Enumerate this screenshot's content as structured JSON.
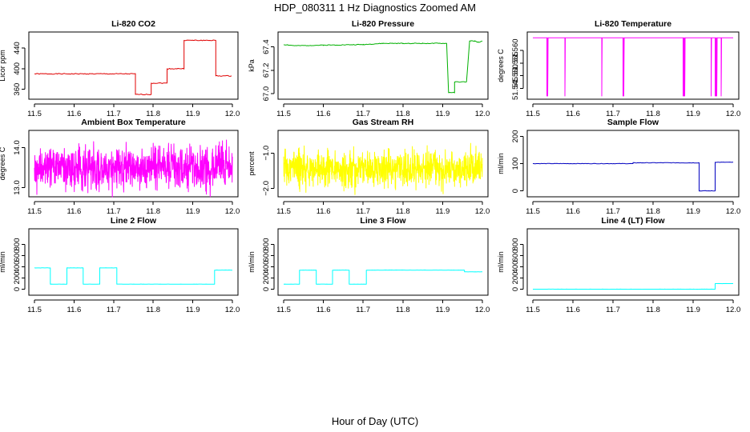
{
  "figure": {
    "title": "HDP_080311  1 Hz Diagnostics Zoomed AM",
    "xlabel": "Hour of Day (UTC)"
  },
  "chart_data": [
    {
      "type": "line",
      "title": "Li-820 CO2",
      "ylabel": "Licor ppm",
      "xlim": [
        11.5,
        12.0
      ],
      "ylim": [
        347,
        465
      ],
      "xticks": [
        11.5,
        11.6,
        11.7,
        11.8,
        11.9,
        12.0
      ],
      "yticks": [
        360,
        400,
        440
      ],
      "ytick_labels": [
        "360",
        "400",
        "440"
      ],
      "color": "#e00000",
      "series": [
        {
          "name": "Li-820 CO2",
          "noise": 0.8,
          "seed": 1,
          "points": [
            [
              11.5,
              390
            ],
            [
              11.755,
              390
            ],
            [
              11.755,
              350
            ],
            [
              11.795,
              350
            ],
            [
              11.795,
              372
            ],
            [
              11.835,
              372
            ],
            [
              11.835,
              400
            ],
            [
              11.878,
              400
            ],
            [
              11.878,
              455
            ],
            [
              11.958,
              455
            ],
            [
              11.958,
              386
            ],
            [
              11.998,
              386
            ]
          ]
        }
      ]
    },
    {
      "type": "line",
      "title": "Li-820 Pressure",
      "ylabel": "kPa",
      "xlim": [
        11.5,
        12.0
      ],
      "ylim": [
        66.98,
        67.5
      ],
      "xticks": [
        11.5,
        11.6,
        11.7,
        11.8,
        11.9,
        12.0
      ],
      "yticks": [
        67.0,
        67.2,
        67.4
      ],
      "ytick_labels": [
        "67.0",
        "67.2",
        "67.4"
      ],
      "color": "#00b000",
      "series": [
        {
          "name": "Li-820 Pressure",
          "noise": 0.003,
          "seed": 2,
          "points": [
            [
              11.5,
              67.42
            ],
            [
              11.53,
              67.41
            ],
            [
              11.6,
              67.415
            ],
            [
              11.7,
              67.42
            ],
            [
              11.75,
              67.43
            ],
            [
              11.8,
              67.43
            ],
            [
              11.85,
              67.43
            ],
            [
              11.91,
              67.43
            ],
            [
              11.915,
              67.01
            ],
            [
              11.93,
              67.01
            ],
            [
              11.93,
              67.1
            ],
            [
              11.96,
              67.1
            ],
            [
              11.968,
              67.45
            ],
            [
              11.98,
              67.45
            ],
            [
              11.99,
              67.44
            ],
            [
              12.0,
              67.45
            ]
          ]
        }
      ]
    },
    {
      "type": "line",
      "title": "Li-820 Temperature",
      "ylabel": "degrees C",
      "xlim": [
        11.5,
        12.0
      ],
      "ylim": [
        51.542,
        51.566
      ],
      "xticks": [
        11.5,
        11.6,
        11.7,
        11.8,
        11.9,
        12.0
      ],
      "yticks": [
        51.545,
        51.55,
        51.555,
        51.56
      ],
      "ytick_labels": [
        "51.545",
        "51.550",
        "51.555",
        "51.560"
      ],
      "color": "#ff00ff",
      "series": [
        {
          "name": "Li-820 Temperature",
          "noise": 0.0,
          "seed": 3,
          "points": [
            [
              11.5,
              51.565
            ],
            [
              11.535,
              51.565
            ],
            [
              11.535,
              51.542
            ],
            [
              11.536,
              51.565
            ],
            [
              11.537,
              51.542
            ],
            [
              11.538,
              51.565
            ],
            [
              11.58,
              51.565
            ],
            [
              11.58,
              51.542
            ],
            [
              11.581,
              51.565
            ],
            [
              11.672,
              51.565
            ],
            [
              11.672,
              51.542
            ],
            [
              11.673,
              51.565
            ],
            [
              11.725,
              51.565
            ],
            [
              11.725,
              51.542
            ],
            [
              11.726,
              51.565
            ],
            [
              11.727,
              51.542
            ],
            [
              11.728,
              51.565
            ],
            [
              11.875,
              51.565
            ],
            [
              11.875,
              51.542
            ],
            [
              11.876,
              51.565
            ],
            [
              11.877,
              51.542
            ],
            [
              11.878,
              51.565
            ],
            [
              11.879,
              51.542
            ],
            [
              11.88,
              51.565
            ],
            [
              11.945,
              51.565
            ],
            [
              11.945,
              51.542
            ],
            [
              11.946,
              51.565
            ],
            [
              11.955,
              51.565
            ],
            [
              11.955,
              51.542
            ],
            [
              11.956,
              51.565
            ],
            [
              11.957,
              51.542
            ],
            [
              11.958,
              51.565
            ],
            [
              11.959,
              51.542
            ],
            [
              11.96,
              51.565
            ],
            [
              11.97,
              51.565
            ],
            [
              11.97,
              51.542
            ],
            [
              11.971,
              51.565
            ],
            [
              12.0,
              51.565
            ]
          ]
        }
      ]
    },
    {
      "type": "line",
      "title": "Ambient Box Temperature",
      "ylabel": "degrees C",
      "xlim": [
        11.5,
        12.0
      ],
      "ylim": [
        12.85,
        14.35
      ],
      "xticks": [
        11.5,
        11.6,
        11.7,
        11.8,
        11.9,
        12.0
      ],
      "yticks": [
        13.0,
        14.0
      ],
      "ytick_labels": [
        "13.0",
        "14.0"
      ],
      "color": "#ff00ff",
      "series": [
        {
          "name": "Ambient Box Temperature",
          "noise": 0.5,
          "seed": 4,
          "dense": true,
          "points": [
            [
              11.5,
              13.5
            ],
            [
              12.0,
              13.5
            ]
          ]
        }
      ]
    },
    {
      "type": "line",
      "title": "Gas Stream RH",
      "ylabel": "percent",
      "xlim": [
        11.5,
        12.0
      ],
      "ylim": [
        -2.15,
        -0.45
      ],
      "xticks": [
        11.5,
        11.6,
        11.7,
        11.8,
        11.9,
        12.0
      ],
      "yticks": [
        -2.0,
        -1.0
      ],
      "ytick_labels": [
        "−2.0",
        "−1.0"
      ],
      "color": "#ffff00",
      "series": [
        {
          "name": "Gas Stream RH",
          "noise": 0.5,
          "seed": 5,
          "dense": true,
          "points": [
            [
              11.5,
              -1.45
            ],
            [
              12.0,
              -1.45
            ]
          ]
        }
      ]
    },
    {
      "type": "line",
      "title": "Sample Flow",
      "ylabel": "ml/min",
      "xlim": [
        11.5,
        12.0
      ],
      "ylim": [
        -10,
        210
      ],
      "xticks": [
        11.5,
        11.6,
        11.7,
        11.8,
        11.9,
        12.0
      ],
      "yticks": [
        0,
        100,
        200
      ],
      "ytick_labels": [
        "0",
        "100",
        "200"
      ],
      "color": "#0000c0",
      "series": [
        {
          "name": "Sample Flow",
          "noise": 0.8,
          "seed": 6,
          "points": [
            [
              11.5,
              100
            ],
            [
              11.75,
              100
            ],
            [
              11.75,
              103
            ],
            [
              11.915,
              103
            ],
            [
              11.915,
              0
            ],
            [
              11.955,
              0
            ],
            [
              11.955,
              105
            ],
            [
              12.0,
              105
            ]
          ]
        }
      ]
    },
    {
      "type": "line",
      "title": "Line 2 Flow",
      "ylabel": "ml/min",
      "xlim": [
        11.5,
        12.0
      ],
      "ylim": [
        -50,
        1020
      ],
      "xticks": [
        11.5,
        11.6,
        11.7,
        11.8,
        11.9,
        12.0
      ],
      "yticks": [
        0,
        200,
        400,
        600,
        800
      ],
      "ytick_labels": [
        "0",
        "200",
        "400",
        "600",
        "800"
      ],
      "color": "#00ffff",
      "series": [
        {
          "name": "Line 2 Flow",
          "noise": 2,
          "seed": 7,
          "points": [
            [
              11.5,
              380
            ],
            [
              11.54,
              380
            ],
            [
              11.54,
              90
            ],
            [
              11.582,
              90
            ],
            [
              11.582,
              380
            ],
            [
              11.623,
              380
            ],
            [
              11.623,
              90
            ],
            [
              11.665,
              90
            ],
            [
              11.665,
              380
            ],
            [
              11.708,
              380
            ],
            [
              11.708,
              90
            ],
            [
              11.955,
              90
            ],
            [
              11.955,
              340
            ],
            [
              12.0,
              340
            ]
          ]
        }
      ]
    },
    {
      "type": "line",
      "title": "Line 3 Flow",
      "ylabel": "ml/min",
      "xlim": [
        11.5,
        12.0
      ],
      "ylim": [
        -50,
        1020
      ],
      "xticks": [
        11.5,
        11.6,
        11.7,
        11.8,
        11.9,
        12.0
      ],
      "yticks": [
        0,
        200,
        400,
        600,
        800
      ],
      "ytick_labels": [
        "0",
        "200",
        "400",
        "600",
        "800"
      ],
      "color": "#00ffff",
      "series": [
        {
          "name": "Line 3 Flow",
          "noise": 2,
          "seed": 8,
          "points": [
            [
              11.5,
              90
            ],
            [
              11.54,
              90
            ],
            [
              11.54,
              340
            ],
            [
              11.582,
              340
            ],
            [
              11.582,
              90
            ],
            [
              11.623,
              90
            ],
            [
              11.623,
              340
            ],
            [
              11.665,
              340
            ],
            [
              11.665,
              90
            ],
            [
              11.708,
              90
            ],
            [
              11.708,
              340
            ],
            [
              11.955,
              340
            ],
            [
              11.955,
              310
            ],
            [
              12.0,
              310
            ]
          ]
        }
      ]
    },
    {
      "type": "line",
      "title": "Line 4 (LT) Flow",
      "ylabel": "ml/min",
      "xlim": [
        11.5,
        12.0
      ],
      "ylim": [
        -50,
        1020
      ],
      "xticks": [
        11.5,
        11.6,
        11.7,
        11.8,
        11.9,
        12.0
      ],
      "yticks": [
        0,
        200,
        400,
        600,
        800
      ],
      "ytick_labels": [
        "0",
        "200",
        "400",
        "600",
        "800"
      ],
      "color": "#00ffff",
      "series": [
        {
          "name": "Line 4 (LT) Flow",
          "noise": 1,
          "seed": 9,
          "points": [
            [
              11.5,
              0
            ],
            [
              11.955,
              0
            ],
            [
              11.955,
              100
            ],
            [
              12.0,
              100
            ]
          ]
        }
      ]
    }
  ]
}
